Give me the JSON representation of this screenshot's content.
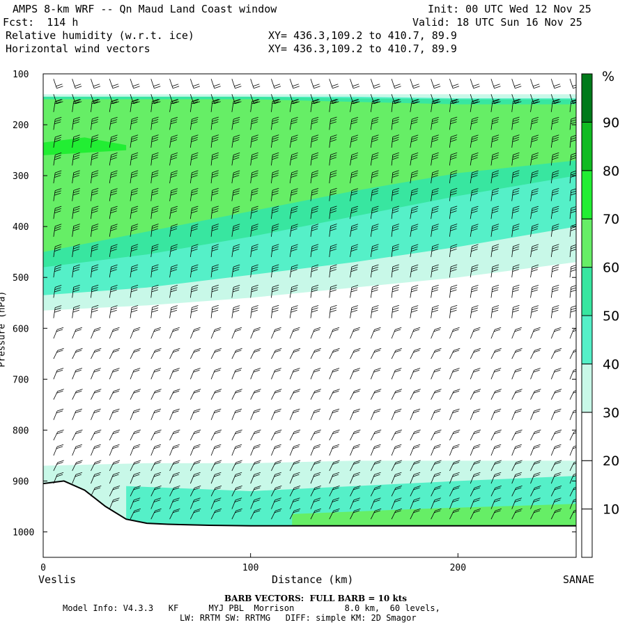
{
  "header": {
    "title": "AMPS 8-km WRF -- Qn Maud Land Coast window",
    "fcst": "Fcst:  114 h",
    "init": "Init: 00 UTC Wed 12 Nov 25",
    "valid": "Valid: 18 UTC Sun 16 Nov 25",
    "field1": "Relative humidity (w.r.t. ice)",
    "field2": "Horizontal wind vectors",
    "xy1": "XY= 436.3,109.2 to 410.7, 89.9",
    "xy2": "XY= 436.3,109.2 to 410.7, 89.9"
  },
  "footer": {
    "barb": "BARB VECTORS:  FULL BARB = 10 kts",
    "model1": "Model Info: V4.3.3   KF      MYJ PBL  Morrison          8.0 km,  60 levels,",
    "model2": "LW: RRTM SW: RRTMG   DIFF: simple KM: 2D Smagor"
  },
  "chart_data": {
    "type": "heatmap",
    "title": "Relative humidity (w.r.t. ice) cross-section with horizontal wind barbs",
    "xlabel": "Distance (km)",
    "ylabel": "Pressure (hPa)",
    "xlim": [
      0,
      257
    ],
    "ylim": [
      1050,
      100
    ],
    "x_ticks": [
      0,
      100,
      200
    ],
    "y_ticks": [
      100,
      200,
      300,
      400,
      500,
      600,
      700,
      800,
      900,
      1000
    ],
    "left_endpoint": "Veslis",
    "right_endpoint": "SANAE",
    "colorbar": {
      "unit": "%",
      "levels": [
        10,
        20,
        30,
        40,
        50,
        60,
        70,
        80,
        90
      ],
      "bins": [
        {
          "min": 0,
          "max": 10,
          "color": "#ffffff"
        },
        {
          "min": 10,
          "max": 20,
          "color": "#ffffff"
        },
        {
          "min": 20,
          "max": 30,
          "color": "#ffffff"
        },
        {
          "min": 30,
          "max": 40,
          "color": "#c8f8e8"
        },
        {
          "min": 40,
          "max": 50,
          "color": "#55f0c8"
        },
        {
          "min": 50,
          "max": 60,
          "color": "#38e6a0"
        },
        {
          "min": 60,
          "max": 70,
          "color": "#66ee66"
        },
        {
          "min": 70,
          "max": 80,
          "color": "#22ee33"
        },
        {
          "min": 80,
          "max": 90,
          "color": "#11bb22"
        },
        {
          "min": 90,
          "max": 100,
          "color": "#007a1a"
        }
      ]
    },
    "rh_layers": [
      {
        "rh_bin": "30-40",
        "color": "#c8f8e8",
        "x": [
          0,
          50,
          100,
          150,
          200,
          257
        ],
        "top_p": [
          140,
          140,
          140,
          140,
          140,
          140
        ],
        "bottom_p": [
          565,
          555,
          540,
          520,
          500,
          470
        ]
      },
      {
        "rh_bin": "40-50",
        "color": "#55f0c8",
        "x": [
          0,
          50,
          100,
          150,
          200,
          257
        ],
        "top_p": [
          145,
          145,
          145,
          145,
          148,
          148
        ],
        "bottom_p": [
          535,
          520,
          495,
          470,
          440,
          400
        ]
      },
      {
        "rh_bin": "50-60",
        "color": "#38e6a0",
        "x": [
          0,
          50,
          100,
          150,
          200,
          257
        ],
        "top_p": [
          145,
          145,
          145,
          148,
          150,
          150
        ],
        "bottom_p": [
          480,
          455,
          420,
          380,
          340,
          300
        ]
      },
      {
        "rh_bin": "60-70",
        "color": "#66ee66",
        "x": [
          0,
          50,
          100,
          150,
          200,
          257
        ],
        "top_p": [
          150,
          150,
          150,
          155,
          160,
          160
        ],
        "bottom_p": [
          450,
          410,
          370,
          330,
          295,
          270
        ]
      },
      {
        "rh_bin": "70-80",
        "color": "#22ee33",
        "x": [
          0,
          20,
          40
        ],
        "top_p": [
          235,
          225,
          240
        ],
        "bottom_p": [
          260,
          255,
          250
        ]
      },
      {
        "rh_bin": "30-40 (low level)",
        "color": "#c8f8e8",
        "x": [
          0,
          50,
          100,
          150,
          200,
          257
        ],
        "top_p": [
          870,
          865,
          865,
          860,
          860,
          860
        ],
        "bottom_p": [
          990,
          990,
          990,
          990,
          990,
          990
        ]
      },
      {
        "rh_bin": "40-50 (low level)",
        "color": "#55f0c8",
        "x": [
          40,
          100,
          150,
          200,
          257
        ],
        "top_p": [
          910,
          920,
          910,
          900,
          890
        ],
        "bottom_p": [
          990,
          990,
          990,
          990,
          990
        ]
      },
      {
        "rh_bin": "60-70 (near surface)",
        "color": "#66ee66",
        "x": [
          120,
          180,
          257
        ],
        "top_p": [
          965,
          955,
          945
        ],
        "bottom_p": [
          990,
          990,
          990
        ]
      }
    ],
    "terrain": {
      "x": [
        0,
        10,
        20,
        30,
        40,
        50,
        60,
        80,
        100,
        150,
        200,
        257
      ],
      "p": [
        905,
        900,
        918,
        950,
        975,
        983,
        985,
        987,
        988,
        988,
        988,
        988
      ]
    },
    "barb_columns_km": [
      5,
      14,
      23,
      32,
      42,
      52,
      61,
      71,
      81,
      91,
      100,
      110,
      119,
      129,
      138,
      148,
      158,
      168,
      177,
      187,
      196,
      206,
      216,
      226,
      235,
      245,
      254
    ],
    "barb_levels_hpa": [
      110,
      140,
      175,
      210,
      245,
      280,
      315,
      350,
      385,
      420,
      460,
      500,
      540,
      580,
      620,
      660,
      700,
      740,
      780,
      820,
      850,
      880,
      905,
      930,
      955,
      975
    ]
  }
}
